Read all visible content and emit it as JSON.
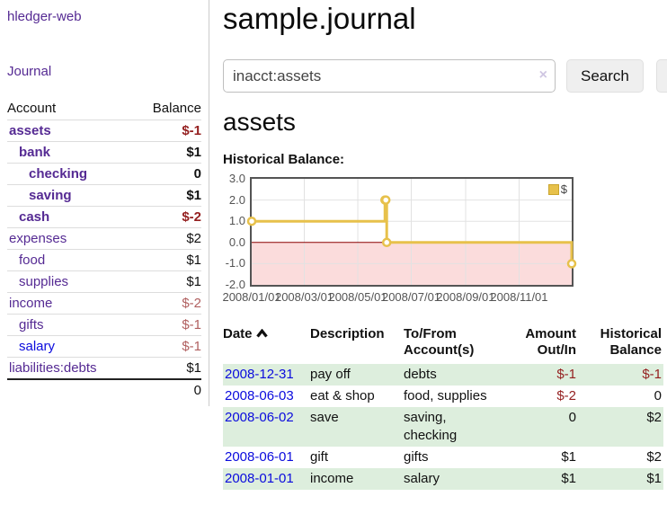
{
  "app": {
    "brand": "hledger-web",
    "nav": {
      "journal": "Journal"
    }
  },
  "page": {
    "title": "sample.journal"
  },
  "search": {
    "value": "inacct:assets",
    "clear_icon": "×",
    "search_button": "Search",
    "help_button": "?"
  },
  "sidebar": {
    "account_column": "Account",
    "balance_column": "Balance",
    "accounts": [
      {
        "name": "assets",
        "balance": "$-1",
        "depth": 1,
        "bold": true,
        "balance_tone": "neg-strong",
        "link_tone": "visited"
      },
      {
        "name": "bank",
        "balance": "$1",
        "depth": 2,
        "bold": true,
        "balance_tone": "pos",
        "link_tone": "visited"
      },
      {
        "name": "checking",
        "balance": "0",
        "depth": 3,
        "bold": true,
        "balance_tone": "pos",
        "link_tone": "visited"
      },
      {
        "name": "saving",
        "balance": "$1",
        "depth": 3,
        "bold": true,
        "balance_tone": "pos",
        "link_tone": "visited"
      },
      {
        "name": "cash",
        "balance": "$-2",
        "depth": 2,
        "bold": true,
        "balance_tone": "neg-strong",
        "link_tone": "visited"
      },
      {
        "name": "expenses",
        "balance": "$2",
        "depth": 1,
        "bold": false,
        "balance_tone": "pos",
        "link_tone": "visited"
      },
      {
        "name": "food",
        "balance": "$1",
        "depth": 2,
        "bold": false,
        "balance_tone": "pos",
        "link_tone": "visited"
      },
      {
        "name": "supplies",
        "balance": "$1",
        "depth": 2,
        "bold": false,
        "balance_tone": "pos",
        "link_tone": "visited"
      },
      {
        "name": "income",
        "balance": "$-2",
        "depth": 1,
        "bold": false,
        "balance_tone": "neg-soft",
        "link_tone": "visited"
      },
      {
        "name": "gifts",
        "balance": "$-1",
        "depth": 2,
        "bold": false,
        "balance_tone": "neg-soft",
        "link_tone": "visited"
      },
      {
        "name": "salary",
        "balance": "$-1",
        "depth": 2,
        "bold": false,
        "balance_tone": "neg-soft",
        "link_tone": "unvisited"
      },
      {
        "name": "liabilities:debts",
        "balance": "$1",
        "depth": 1,
        "bold": false,
        "balance_tone": "pos",
        "link_tone": "visited"
      }
    ],
    "total": "0"
  },
  "account_page": {
    "title": "assets",
    "section_label": "Historical Balance:"
  },
  "chart_data": {
    "type": "line",
    "steps": true,
    "title": "Historical Balance:",
    "series": [
      {
        "name": "$",
        "color": "#e7c14b",
        "points": [
          [
            "2008-01-01",
            1
          ],
          [
            "2008-06-01",
            2
          ],
          [
            "2008-06-02",
            2
          ],
          [
            "2008-06-03",
            0
          ],
          [
            "2008-12-31",
            -1
          ]
        ]
      }
    ],
    "x_range": [
      "2008-01-01",
      "2008-12-31"
    ],
    "x_ticks": [
      "2008/01/01",
      "2008/03/01",
      "2008/05/01",
      "2008/07/01",
      "2008/09/01",
      "2008/11/01"
    ],
    "y_ticks": [
      "3.0",
      "2.0",
      "1.0",
      "0.0",
      "-1.0",
      "-2.0"
    ],
    "ylim": [
      -2,
      3
    ],
    "grid": true,
    "legend": {
      "label": "$",
      "position": "top-right"
    },
    "colors": {
      "negative_region": "#fbdcdc",
      "zero_line": "#8b0000",
      "grid_line": "#e2e2e2",
      "border": "#545454",
      "axis_text": "#545454"
    }
  },
  "register": {
    "columns": [
      {
        "label": "Date",
        "sortable": true,
        "align": "left"
      },
      {
        "label": "Description",
        "align": "left"
      },
      {
        "label": "To/From Account(s)",
        "align": "left"
      },
      {
        "label": "Amount Out/In",
        "align": "right"
      },
      {
        "label": "Historical Balance",
        "align": "right"
      }
    ],
    "rows": [
      {
        "date": "2008-12-31",
        "description": "pay off",
        "accounts": "debts",
        "amount": "$-1",
        "balance": "$-1"
      },
      {
        "date": "2008-06-03",
        "description": "eat & shop",
        "accounts": "food, supplies",
        "amount": "$-2",
        "balance": "0"
      },
      {
        "date": "2008-06-02",
        "description": "save",
        "accounts": "saving, checking",
        "amount": "0",
        "balance": "$2"
      },
      {
        "date": "2008-06-01",
        "description": "gift",
        "accounts": "gifts",
        "amount": "$1",
        "balance": "$2"
      },
      {
        "date": "2008-01-01",
        "description": "income",
        "accounts": "salary",
        "amount": "$1",
        "balance": "$1"
      }
    ]
  }
}
